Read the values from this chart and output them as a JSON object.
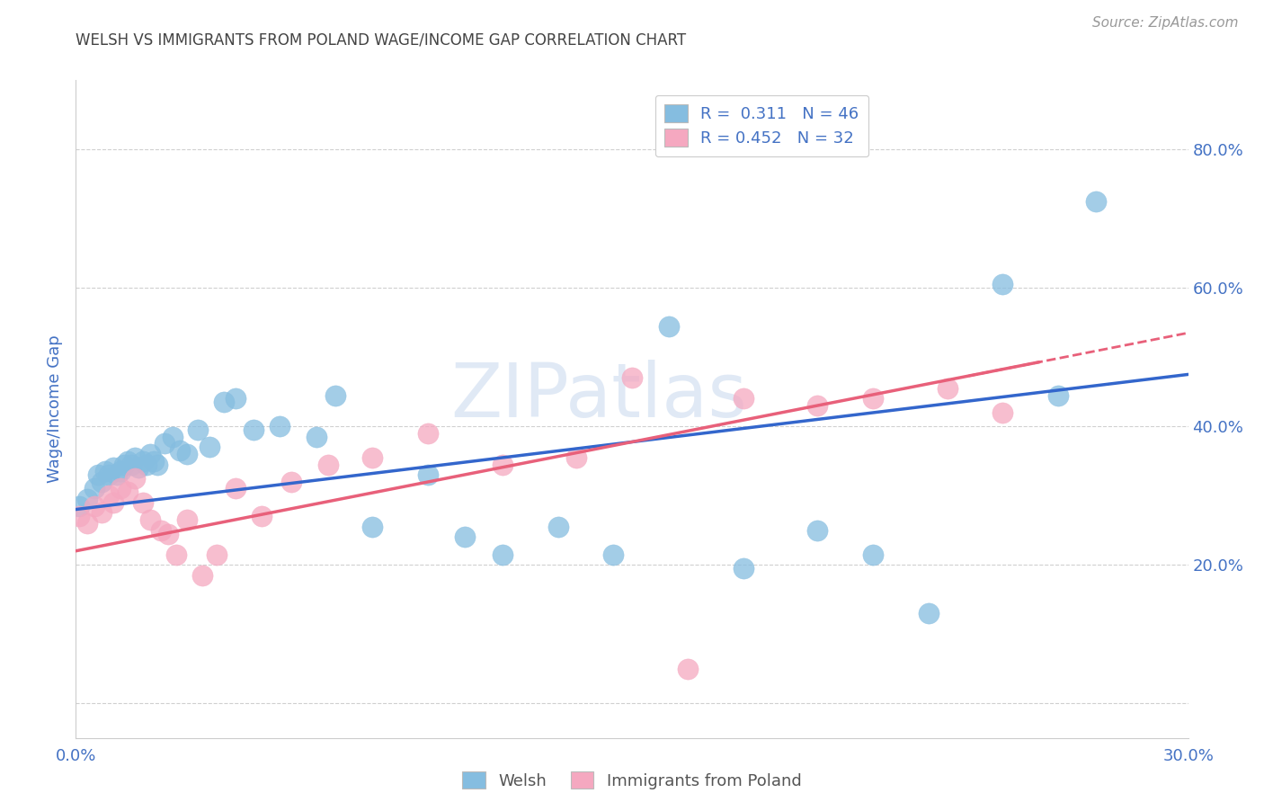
{
  "title": "WELSH VS IMMIGRANTS FROM POLAND WAGE/INCOME GAP CORRELATION CHART",
  "source": "Source: ZipAtlas.com",
  "ylabel": "Wage/Income Gap",
  "xlim": [
    0.0,
    0.3
  ],
  "ylim": [
    -0.05,
    0.9
  ],
  "right_yticks": [
    0.0,
    0.2,
    0.4,
    0.6,
    0.8
  ],
  "right_yticklabels": [
    "",
    "20.0%",
    "40.0%",
    "60.0%",
    "80.0%"
  ],
  "xticks": [
    0.0,
    0.05,
    0.1,
    0.15,
    0.2,
    0.25,
    0.3
  ],
  "xticklabels": [
    "0.0%",
    "",
    "",
    "",
    "",
    "",
    "30.0%"
  ],
  "legend_welsh_R": "0.311",
  "legend_welsh_N": "46",
  "legend_poland_R": "0.452",
  "legend_poland_N": "32",
  "welsh_color": "#85bde0",
  "poland_color": "#f5a8c0",
  "welsh_line_color": "#3366cc",
  "poland_line_color": "#e8607a",
  "watermark": "ZIPatlas",
  "welsh_x": [
    0.001,
    0.003,
    0.005,
    0.006,
    0.007,
    0.008,
    0.009,
    0.01,
    0.011,
    0.012,
    0.013,
    0.014,
    0.015,
    0.016,
    0.017,
    0.018,
    0.019,
    0.02,
    0.021,
    0.022,
    0.024,
    0.026,
    0.028,
    0.03,
    0.033,
    0.036,
    0.04,
    0.043,
    0.048,
    0.055,
    0.065,
    0.07,
    0.08,
    0.095,
    0.105,
    0.115,
    0.13,
    0.145,
    0.16,
    0.18,
    0.2,
    0.215,
    0.23,
    0.25,
    0.265,
    0.275
  ],
  "welsh_y": [
    0.285,
    0.295,
    0.31,
    0.33,
    0.32,
    0.335,
    0.33,
    0.34,
    0.33,
    0.335,
    0.345,
    0.35,
    0.345,
    0.355,
    0.34,
    0.35,
    0.345,
    0.36,
    0.35,
    0.345,
    0.375,
    0.385,
    0.365,
    0.36,
    0.395,
    0.37,
    0.435,
    0.44,
    0.395,
    0.4,
    0.385,
    0.445,
    0.255,
    0.33,
    0.24,
    0.215,
    0.255,
    0.215,
    0.545,
    0.195,
    0.25,
    0.215,
    0.13,
    0.605,
    0.445,
    0.725
  ],
  "poland_x": [
    0.001,
    0.003,
    0.005,
    0.007,
    0.009,
    0.01,
    0.012,
    0.014,
    0.016,
    0.018,
    0.02,
    0.023,
    0.025,
    0.027,
    0.03,
    0.034,
    0.038,
    0.043,
    0.05,
    0.058,
    0.068,
    0.08,
    0.095,
    0.115,
    0.135,
    0.15,
    0.165,
    0.18,
    0.2,
    0.215,
    0.235,
    0.25
  ],
  "poland_y": [
    0.27,
    0.26,
    0.285,
    0.275,
    0.3,
    0.29,
    0.31,
    0.305,
    0.325,
    0.29,
    0.265,
    0.25,
    0.245,
    0.215,
    0.265,
    0.185,
    0.215,
    0.31,
    0.27,
    0.32,
    0.345,
    0.355,
    0.39,
    0.345,
    0.355,
    0.47,
    0.05,
    0.44,
    0.43,
    0.44,
    0.455,
    0.42
  ],
  "background_color": "#ffffff",
  "grid_color": "#cccccc",
  "title_color": "#444444",
  "axis_label_color": "#4472c4",
  "right_axis_color": "#4472c4",
  "welsh_intercept": 0.28,
  "welsh_slope": 0.65,
  "poland_intercept": 0.22,
  "poland_slope": 1.05
}
